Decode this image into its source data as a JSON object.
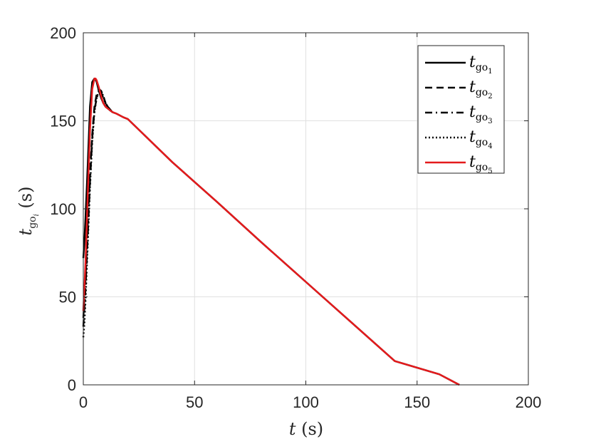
{
  "chart_data": {
    "type": "line",
    "title": "",
    "xlabel": "t (s)",
    "ylabel": "t_go_i (s)",
    "xlim": [
      0,
      200
    ],
    "ylim": [
      0,
      200
    ],
    "xticks": [
      0,
      50,
      100,
      150,
      200
    ],
    "yticks": [
      0,
      50,
      100,
      150,
      200
    ],
    "grid": true,
    "legend_position": "top-right",
    "series": [
      {
        "name": "t_go1",
        "color": "#000000",
        "style": "solid",
        "x": [
          0,
          0.5,
          1,
          2,
          3,
          4,
          5,
          5.5,
          6,
          7,
          8,
          9,
          10,
          11,
          12,
          13,
          15,
          18,
          20,
          40,
          60,
          80,
          100,
          120,
          140,
          160,
          169
        ],
        "y": [
          72,
          82,
          95,
          125,
          158,
          172,
          174,
          173.5,
          172,
          167,
          163,
          160,
          158,
          157,
          156,
          155,
          154,
          152,
          151,
          126.5,
          104,
          81,
          58.5,
          36,
          13.5,
          6,
          0
        ]
      },
      {
        "name": "t_go2",
        "color": "#000000",
        "style": "dashed",
        "x": [
          0,
          1,
          2,
          3,
          4,
          5,
          6,
          7,
          8,
          9,
          10,
          11,
          12,
          13
        ],
        "y": [
          38,
          60,
          92,
          120,
          142,
          158,
          165,
          168,
          167,
          164,
          160,
          158,
          156.5,
          155
        ]
      },
      {
        "name": "t_go3",
        "color": "#000000",
        "style": "dash-dot",
        "x": [
          0,
          1,
          2,
          3,
          4,
          5,
          6,
          7,
          8,
          9,
          10,
          11,
          12,
          13
        ],
        "y": [
          33,
          55,
          85,
          115,
          140,
          156,
          163,
          166,
          166,
          163,
          160,
          158,
          156,
          155
        ]
      },
      {
        "name": "t_go4",
        "color": "#000000",
        "style": "dotted",
        "x": [
          0,
          0.5,
          1,
          2,
          3,
          4,
          5,
          6,
          7,
          8,
          9,
          10,
          11,
          12,
          13
        ],
        "y": [
          27,
          35,
          48,
          80,
          112,
          138,
          155,
          163,
          167,
          167,
          164,
          160,
          158,
          156,
          155
        ]
      },
      {
        "name": "t_go5",
        "color": "#e41a1c",
        "style": "solid",
        "x": [
          0,
          0.5,
          1,
          2,
          3,
          4,
          5,
          5.5,
          6,
          7,
          8,
          9,
          10,
          11,
          12,
          13,
          15,
          18,
          20,
          40,
          60,
          80,
          100,
          120,
          140,
          160,
          169
        ],
        "y": [
          42,
          55,
          70,
          108,
          145,
          168,
          174,
          174,
          173,
          169,
          164,
          160,
          158,
          157,
          156,
          155,
          154,
          152,
          151,
          126.5,
          104,
          81,
          58.5,
          36,
          13.5,
          6,
          0
        ]
      }
    ]
  }
}
